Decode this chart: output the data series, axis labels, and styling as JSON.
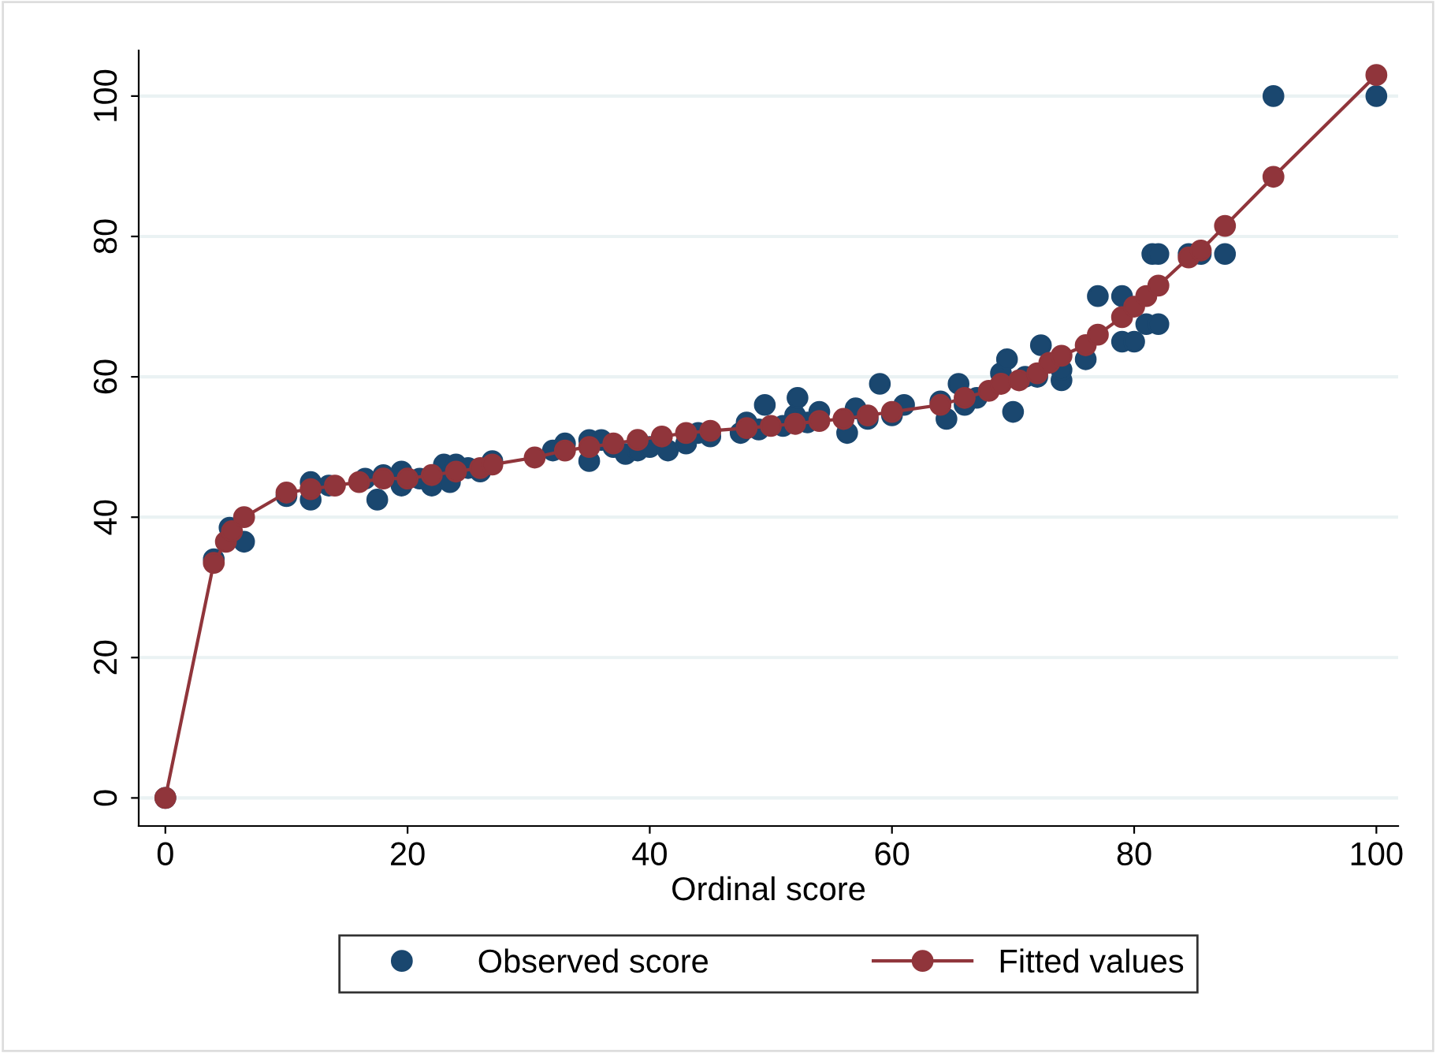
{
  "chart_data": {
    "type": "scatter",
    "xlabel": "Ordinal score",
    "xlim": [
      -2.2,
      101.8
    ],
    "ylim": [
      -4,
      106.5
    ],
    "xticks": [
      0,
      20,
      40,
      60,
      80,
      100
    ],
    "yticks": [
      0,
      20,
      40,
      60,
      80,
      100
    ],
    "grid": "y",
    "legend": "bottom",
    "marker": "circle",
    "series": [
      {
        "name": "Observed score",
        "color": "#1a476f",
        "x": [
          0,
          4,
          5,
          5.3,
          6.5,
          10,
          12,
          12,
          13.5,
          16,
          16.5,
          17.5,
          18,
          19.5,
          19.5,
          21,
          22,
          23,
          23.5,
          24,
          25,
          26,
          27,
          30.5,
          32,
          33,
          35,
          35,
          36,
          37,
          38,
          39,
          40,
          41.5,
          43,
          44,
          45,
          47.5,
          48,
          49,
          49.5,
          51,
          52,
          52.2,
          53,
          54,
          56,
          56.3,
          57,
          58,
          59,
          60,
          61,
          64,
          64.5,
          65.5,
          66,
          67,
          69,
          69.5,
          70,
          71,
          72,
          72.3,
          74,
          74,
          76,
          77,
          79,
          79,
          80,
          81,
          81.5,
          82,
          82,
          84.5,
          85.5,
          87.5,
          91.5,
          100
        ],
        "values": [
          0,
          34,
          null,
          38.5,
          36.5,
          43,
          45,
          42.5,
          44.5,
          null,
          45.5,
          42.5,
          46,
          46.5,
          44.5,
          45.5,
          44.5,
          47.5,
          45,
          47.5,
          47,
          46.5,
          48,
          null,
          49.5,
          50.5,
          51,
          48,
          51,
          50,
          49,
          49.5,
          50,
          49.5,
          50.5,
          52,
          51.5,
          52,
          53.5,
          52.5,
          56,
          53,
          54.5,
          57,
          53.5,
          55,
          null,
          52,
          55.5,
          54,
          59,
          54.5,
          56,
          56.5,
          54,
          59,
          56,
          57,
          60.5,
          62.5,
          55,
          60,
          60,
          64.5,
          59.5,
          61,
          62.5,
          71.5,
          71.5,
          65,
          65,
          67.5,
          77.5,
          77.5,
          67.5,
          77.5,
          77.5,
          77.5,
          100,
          100
        ]
      },
      {
        "name": "Fitted values",
        "type": "line",
        "color": "#90353b",
        "x": [
          0,
          4,
          5,
          5.5,
          6.5,
          10,
          12,
          14,
          16,
          18,
          20,
          22,
          24,
          26,
          27,
          30.5,
          33,
          35,
          37,
          39,
          41,
          43,
          45,
          48,
          50,
          52,
          54,
          56,
          58,
          60,
          64,
          66,
          68,
          69,
          70.5,
          72,
          73,
          74,
          76,
          77,
          79,
          80,
          81,
          82,
          84.5,
          85.5,
          87.5,
          91.5,
          100
        ],
        "values": [
          0,
          33.5,
          36.5,
          38,
          40,
          43.5,
          44,
          44.5,
          45,
          45.5,
          45.5,
          46,
          46.5,
          47,
          47.5,
          48.5,
          49.5,
          50,
          50.5,
          51,
          51.5,
          52,
          52.3,
          52.7,
          53,
          53.3,
          53.7,
          54,
          54.5,
          55,
          56,
          57,
          58,
          59,
          59.5,
          60.5,
          62,
          63,
          64.5,
          66,
          68.5,
          70,
          71.5,
          73,
          77,
          78,
          81.5,
          88.5,
          103
        ]
      }
    ]
  }
}
